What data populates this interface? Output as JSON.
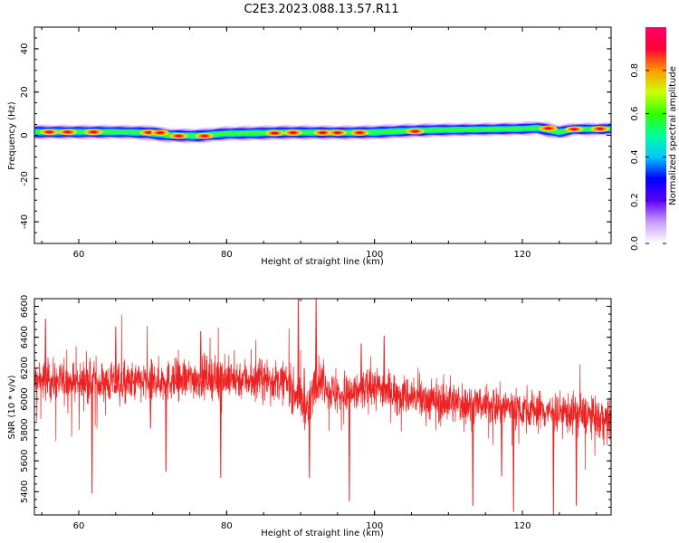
{
  "title": "C2E3.2023.088.13.57.R11",
  "chart_data": [
    {
      "type": "heatmap",
      "xlabel": "Height of straight line (km)",
      "ylabel": "Frequency (Hz)",
      "xlim": [
        54,
        132
      ],
      "ylim": [
        -50,
        50
      ],
      "xticks": [
        "60",
        "80",
        "100",
        "120"
      ],
      "yticks": [
        "40",
        "20",
        "0",
        "-20",
        "-40"
      ],
      "colorbar": {
        "label": "Normalized spectral amplitude",
        "range": [
          0,
          1
        ],
        "ticks": [
          "0.0",
          "0.2",
          "0.4",
          "0.6",
          "0.8"
        ],
        "colormap": [
          "#ffffff",
          "#c89bff",
          "#5a00ff",
          "#0000ff",
          "#00c8ff",
          "#00ff9a",
          "#33ff00",
          "#ccff00",
          "#ff9900",
          "#ff0033",
          "#ff0066"
        ]
      },
      "band": {
        "x": [
          54,
          58,
          62,
          66,
          69,
          70,
          72,
          76,
          80,
          84,
          88,
          92,
          96,
          100,
          104,
          108,
          112,
          116,
          120,
          122,
          123.5,
          125,
          127,
          130,
          132
        ],
        "center_hz": [
          1.5,
          1.5,
          1.5,
          1.5,
          1.2,
          1.0,
          0.0,
          -0.3,
          0.8,
          1.0,
          1.3,
          1.3,
          1.2,
          1.4,
          2.0,
          2.4,
          2.6,
          2.8,
          3.0,
          3.4,
          2.5,
          1.5,
          2.8,
          2.8,
          3.0
        ],
        "halfwidth_hz": [
          3.5,
          3.4,
          3.4,
          3.3,
          3.5,
          3.8,
          3.4,
          3.5,
          3.4,
          3.5,
          3.5,
          3.4,
          3.4,
          3.5,
          3.4,
          3.3,
          3.2,
          3.2,
          3.2,
          3.3,
          3.6,
          3.3,
          3.1,
          3.1,
          3.0
        ],
        "peaks": [
          {
            "x": 56,
            "hz": 1.5
          },
          {
            "x": 58.5,
            "hz": 1.5
          },
          {
            "x": 62,
            "hz": 1.5
          },
          {
            "x": 69.5,
            "hz": 1.3
          },
          {
            "x": 71,
            "hz": 1.2
          },
          {
            "x": 73.5,
            "hz": -0.3
          },
          {
            "x": 77,
            "hz": -0.3
          },
          {
            "x": 86.5,
            "hz": 1.0
          },
          {
            "x": 89,
            "hz": 1.2
          },
          {
            "x": 93,
            "hz": 1.2
          },
          {
            "x": 95,
            "hz": 1.2
          },
          {
            "x": 98,
            "hz": 1.2
          },
          {
            "x": 105.5,
            "hz": 1.8
          },
          {
            "x": 123.5,
            "hz": 3.2
          },
          {
            "x": 127,
            "hz": 2.8
          },
          {
            "x": 130.5,
            "hz": 3.0
          }
        ]
      }
    },
    {
      "type": "line",
      "xlabel": "Height of straight line (km)",
      "ylabel": "SNR (10 * v/v)",
      "xlim": [
        54,
        132
      ],
      "ylim": [
        5250,
        6650
      ],
      "xticks": [
        "60",
        "80",
        "100",
        "120"
      ],
      "yticks": [
        "6600",
        "6400",
        "6200",
        "6000",
        "5800",
        "5600",
        "5400"
      ],
      "color": "#ee2222",
      "trend": {
        "x": [
          54,
          60,
          66,
          72,
          78,
          84,
          88,
          90,
          91,
          92,
          94,
          96,
          100,
          106,
          112,
          118,
          124,
          128,
          132
        ],
        "y": [
          6120,
          6110,
          6100,
          6120,
          6140,
          6130,
          6110,
          6000,
          5900,
          6150,
          6050,
          6020,
          6080,
          6000,
          5970,
          5950,
          5920,
          5900,
          5850
        ]
      },
      "spread": 110,
      "spikes": [
        {
          "x": 55.5,
          "y": 6520
        },
        {
          "x": 61.8,
          "y": 5390
        },
        {
          "x": 65,
          "y": 6470
        },
        {
          "x": 69.7,
          "y": 5810
        },
        {
          "x": 71.8,
          "y": 5530
        },
        {
          "x": 76.5,
          "y": 6440
        },
        {
          "x": 79.2,
          "y": 5490
        },
        {
          "x": 89.7,
          "y": 6650
        },
        {
          "x": 90.5,
          "y": 6200
        },
        {
          "x": 91.2,
          "y": 5490
        },
        {
          "x": 92.1,
          "y": 6650
        },
        {
          "x": 96.6,
          "y": 5340
        },
        {
          "x": 98.2,
          "y": 6360
        },
        {
          "x": 101.3,
          "y": 6410
        },
        {
          "x": 113.3,
          "y": 5310
        },
        {
          "x": 117.2,
          "y": 5500
        },
        {
          "x": 118.8,
          "y": 5270
        },
        {
          "x": 124.2,
          "y": 5250
        },
        {
          "x": 127.3,
          "y": 5310
        },
        {
          "x": 131,
          "y": 5870
        }
      ]
    }
  ]
}
